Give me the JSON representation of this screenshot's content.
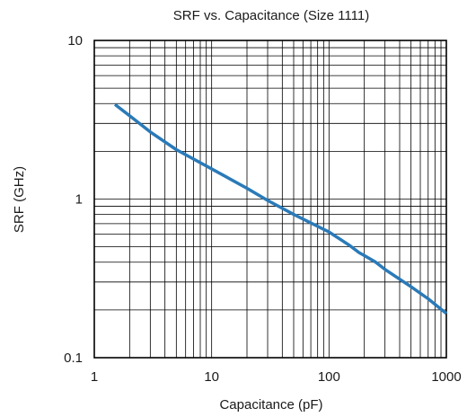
{
  "chart_data": {
    "type": "line",
    "title": "SRF vs. Capacitance (Size 1111)",
    "xlabel": "Capacitance (pF)",
    "ylabel": "SRF (GHz)",
    "xscale": "log",
    "yscale": "log",
    "xlim": [
      1,
      1000
    ],
    "ylim": [
      0.1,
      10
    ],
    "xticks": [
      1,
      10,
      100,
      1000
    ],
    "xtick_labels": [
      "1",
      "10",
      "100",
      "1000"
    ],
    "yticks": [
      0.1,
      1,
      10
    ],
    "ytick_labels": [
      "0.1",
      "1",
      "10"
    ],
    "grid": true,
    "series": [
      {
        "color": "#2a7ab8",
        "x": [
          1.5,
          2,
          3,
          5,
          10,
          20,
          30,
          50,
          100,
          150,
          180,
          200,
          250,
          300,
          500,
          700,
          1000
        ],
        "y": [
          3.95,
          3.35,
          2.65,
          2.05,
          1.55,
          1.17,
          0.98,
          0.8,
          0.62,
          0.51,
          0.46,
          0.44,
          0.4,
          0.36,
          0.28,
          0.235,
          0.19
        ]
      }
    ]
  }
}
